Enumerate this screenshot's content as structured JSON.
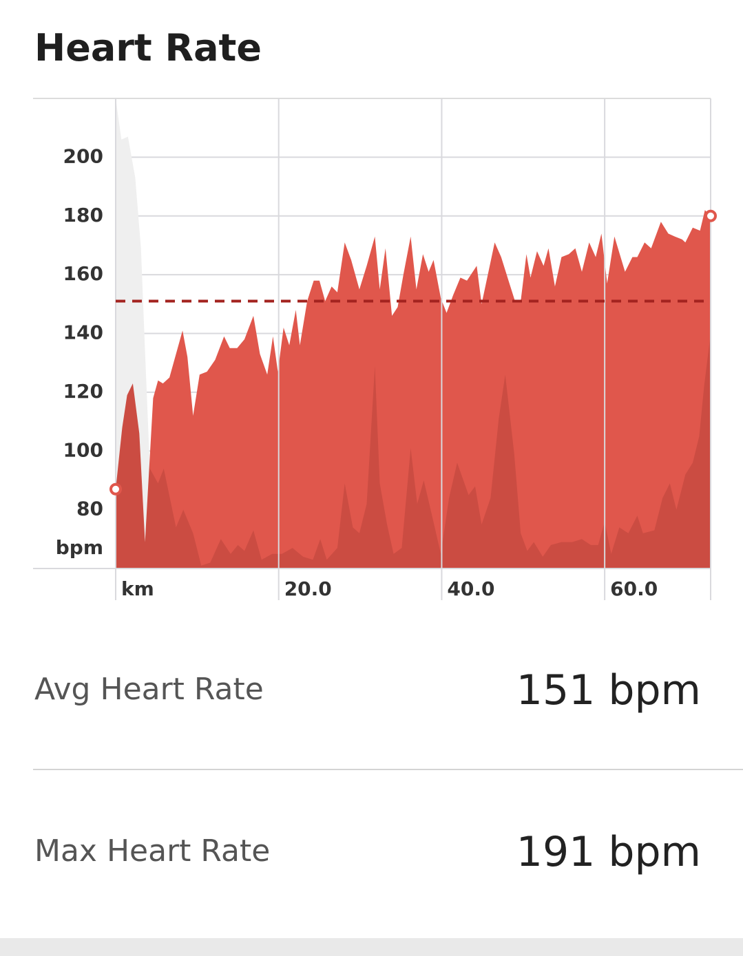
{
  "chart_data": {
    "type": "area",
    "title": "Heart Rate",
    "y_label": "bpm",
    "xlim": [
      0,
      73
    ],
    "ylim": [
      60,
      220
    ],
    "xticks": [
      {
        "value": 0,
        "label": "km"
      },
      {
        "value": 20,
        "label": "20.0"
      },
      {
        "value": 40,
        "label": "40.0"
      },
      {
        "value": 60,
        "label": "60.0"
      }
    ],
    "yticks": [
      80,
      100,
      120,
      140,
      160,
      180,
      200
    ],
    "grid": true,
    "end_markers": true,
    "reference_line": {
      "value": 151,
      "color": "#a3231f",
      "style": "dashed"
    },
    "series": [
      {
        "color": "#e0574c",
        "x": [
          0,
          0.8,
          1.4,
          2.1,
          2.9,
          3.6,
          4.6,
          5.2,
          5.8,
          6.6,
          7.4,
          8.2,
          8.8,
          9.5,
          10.3,
          11.2,
          12.2,
          13.3,
          14.0,
          14.9,
          15.8,
          16.9,
          17.7,
          18.6,
          19.3,
          19.9,
          20.6,
          21.3,
          22.1,
          22.6,
          23.5,
          24.3,
          25.0,
          25.7,
          26.5,
          27.2,
          28.1,
          28.9,
          29.9,
          30.8,
          31.8,
          32.4,
          33.1,
          33.9,
          34.6,
          35.3,
          36.2,
          36.9,
          37.7,
          38.4,
          39.0,
          39.9,
          40.6,
          41.4,
          42.3,
          43.1,
          44.3,
          44.9,
          46.5,
          47.3,
          48.2,
          49.0,
          49.7,
          50.4,
          50.9,
          51.7,
          52.5,
          53.1,
          53.9,
          54.7,
          55.6,
          56.4,
          57.2,
          58.1,
          58.9,
          59.6,
          60.3,
          61.2,
          62.5,
          63.4,
          64.0,
          64.9,
          65.7,
          66.9,
          67.8,
          68.6,
          69.5,
          69.9,
          70.8,
          71.7,
          72.3,
          73.0
        ],
        "values": [
          87,
          108,
          119,
          123,
          106,
          69,
          118,
          124,
          123,
          125,
          133,
          141,
          132,
          112,
          126,
          127,
          131,
          139,
          135,
          135,
          138,
          146,
          133,
          126,
          139,
          127,
          142,
          136,
          148,
          136,
          151,
          158,
          158,
          151,
          156,
          154,
          171,
          165,
          155,
          163,
          173,
          155,
          169,
          146,
          149,
          160,
          173,
          155,
          167,
          161,
          165,
          152,
          147,
          153,
          159,
          158,
          163,
          150,
          171,
          166,
          158,
          151,
          151,
          167,
          159,
          168,
          163,
          169,
          156,
          166,
          167,
          169,
          161,
          171,
          166,
          174,
          157,
          173,
          161,
          166,
          166,
          171,
          169,
          178,
          174,
          173,
          172,
          171,
          176,
          175,
          182,
          180
        ]
      },
      {
        "color": "#efefef",
        "x": [
          0,
          0.7,
          1.5,
          2.4,
          3.1,
          3.6,
          4.2,
          5.2,
          5.9,
          6.8,
          7.4,
          8.3,
          9.5,
          10.5,
          11.6,
          12.9,
          14.1,
          15.0,
          15.8,
          16.9,
          17.9,
          19.2,
          20.4,
          21.7,
          23.0,
          24.2,
          25.1,
          25.9,
          27.2,
          28.1,
          29.1,
          29.9,
          30.8,
          31.8,
          32.4,
          33.3,
          34.1,
          35.1,
          36.2,
          37.0,
          37.8,
          38.9,
          39.9,
          40.9,
          41.9,
          43.3,
          44.1,
          44.9,
          46.0,
          47.0,
          47.8,
          48.9,
          49.7,
          50.5,
          51.3,
          52.4,
          53.4,
          54.7,
          56.0,
          57.2,
          58.3,
          59.2,
          60.0,
          60.8,
          61.8,
          62.9,
          64.0,
          64.7,
          66.1,
          67.1,
          68.0,
          68.8,
          69.9,
          70.8,
          71.6,
          72.2,
          73.0
        ],
        "values": [
          220,
          206,
          207,
          193,
          169,
          134,
          94,
          89,
          94,
          82,
          74,
          80,
          72,
          61,
          62,
          70,
          65,
          68,
          66,
          73,
          63,
          65,
          65,
          67,
          64,
          63,
          70,
          63,
          67,
          89,
          74,
          72,
          82,
          129,
          89,
          75,
          65,
          67,
          101,
          82,
          90,
          77,
          65,
          84,
          96,
          85,
          88,
          75,
          84,
          111,
          126,
          99,
          72,
          66,
          69,
          64,
          68,
          69,
          69,
          70,
          68,
          68,
          76,
          65,
          74,
          72,
          78,
          72,
          73,
          84,
          89,
          80,
          92,
          96,
          105,
          122,
          140
        ]
      }
    ]
  },
  "stats": [
    {
      "label": "Avg Heart Rate",
      "value": "151 bpm"
    },
    {
      "label": "Max Heart Rate",
      "value": "191 bpm"
    }
  ]
}
